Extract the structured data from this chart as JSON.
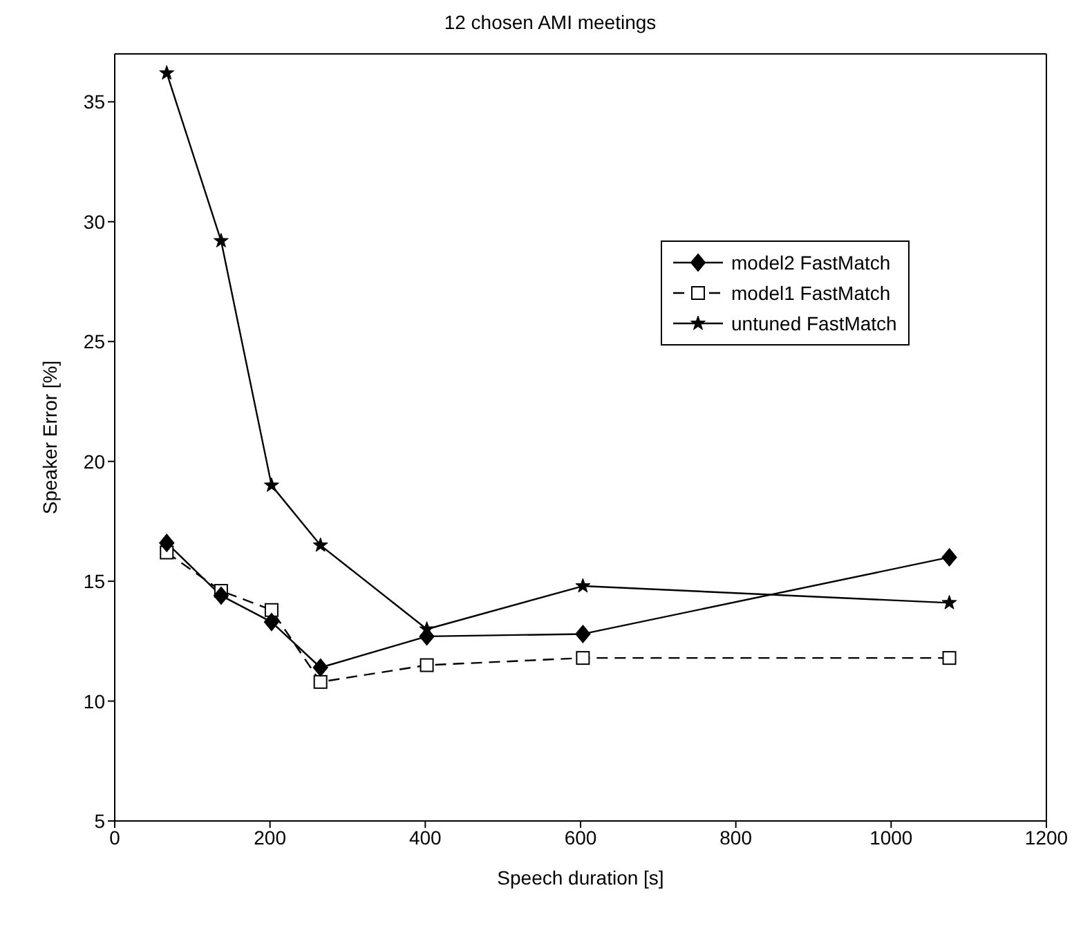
{
  "chart_data": {
    "type": "line",
    "title": "12 chosen AMI meetings",
    "xlabel": "Speech duration [s]",
    "ylabel": "Speaker Error [%]",
    "x": [
      67,
      137,
      202,
      265,
      402,
      603,
      1075
    ],
    "series": [
      {
        "name": "model2 FastMatch",
        "color": "#000000",
        "marker": "diamond",
        "line_style": "solid",
        "values": [
          16.6,
          14.4,
          13.3,
          11.4,
          12.7,
          12.8,
          16.0
        ]
      },
      {
        "name": "model1 FastMatch",
        "color": "#000000",
        "marker": "square",
        "line_style": "dashed",
        "values": [
          16.2,
          14.6,
          13.8,
          10.8,
          11.5,
          11.8,
          11.8
        ]
      },
      {
        "name": "untuned FastMatch",
        "color": "#000000",
        "marker": "star",
        "line_style": "solid",
        "values": [
          36.2,
          29.2,
          19.0,
          16.5,
          13.0,
          14.8,
          14.1
        ]
      }
    ],
    "xlim": [
      0,
      1200
    ],
    "xticks": [
      0,
      200,
      400,
      600,
      800,
      1000,
      1200
    ],
    "ylim": [
      5,
      37
    ],
    "yticks": [
      5,
      10,
      15,
      20,
      25,
      30,
      35
    ],
    "grid": false,
    "legend": "top right"
  }
}
